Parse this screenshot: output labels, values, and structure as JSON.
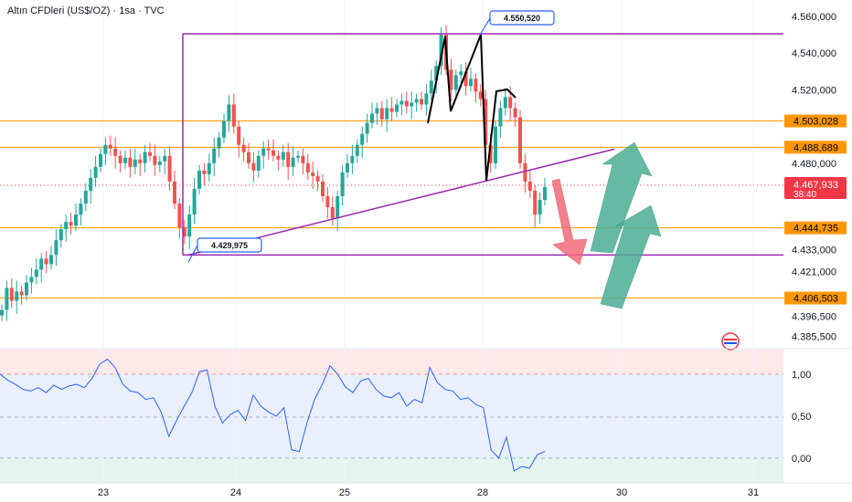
{
  "header": {
    "symbol": "Altın CFDleri (US$/OZ)",
    "interval": "1sa",
    "source": "TVC"
  },
  "colors": {
    "up": "#26a69a",
    "down": "#ef5350",
    "purple": "#9c27b0",
    "orange": "#ff9800",
    "blue_label": "#2962ff",
    "rsi_line": "#2962ff",
    "price_badge": "#f23645",
    "green_arrow": "#4caf95",
    "red_arrow": "#f06a7a"
  },
  "price_axis": {
    "ticks": [
      "4.560,000",
      "4.540,000",
      "4.520,000",
      "4.480,000",
      "4.433,000",
      "4.421,000",
      "4.396,500",
      "4.385,500"
    ],
    "levels": [
      {
        "label": "4.503,028",
        "value": 4503.028
      },
      {
        "label": "4.488,689",
        "value": 4488.689
      },
      {
        "label": "4.444,735",
        "value": 4444.735
      },
      {
        "label": "4.406,503",
        "value": 4406.503
      }
    ],
    "current_price": {
      "label": "4.467,933",
      "countdown": "38:40",
      "value": 4467.933
    }
  },
  "rsi_axis": {
    "ticks": [
      "1,00",
      "0,50",
      "0,00"
    ]
  },
  "time_axis": {
    "labels": [
      "23",
      "24",
      "25",
      "28",
      "30",
      "31"
    ]
  },
  "annotations": {
    "high_label": "4.550,520",
    "low_label": "4.429,975"
  },
  "chart_data": {
    "type": "candlestick",
    "title": "Altın CFDleri (US$/OZ) · 1sa · TVC",
    "price_range": [
      4385.5,
      4565
    ],
    "x_day_labels": [
      "23",
      "24",
      "25",
      "28",
      "30",
      "31"
    ],
    "box_high": 4550.52,
    "box_low": 4429.975,
    "trend_line": {
      "from": 4429.975,
      "to": 4488.689
    },
    "candles_close_series": [
      4400,
      4412,
      4405,
      4410,
      4408,
      4415,
      4418,
      4422,
      4428,
      4425,
      4430,
      4438,
      4444,
      4448,
      4446,
      4452,
      4458,
      4465,
      4472,
      4478,
      4485,
      4490,
      4488,
      4484,
      4480,
      4483,
      4478,
      4482,
      4480,
      4486,
      4484,
      4479,
      4481,
      4484,
      4470,
      4458,
      4445,
      4440,
      4452,
      4466,
      4476,
      4474,
      4480,
      4488,
      4494,
      4503,
      4512,
      4500,
      4490,
      4486,
      4480,
      4476,
      4484,
      4488,
      4487,
      4484,
      4482,
      4486,
      4478,
      4483,
      4484,
      4480,
      4475,
      4473,
      4470,
      4462,
      4456,
      4450,
      4462,
      4475,
      4480,
      4484,
      4490,
      4496,
      4502,
      4507,
      4510,
      4504,
      4510,
      4508,
      4512,
      4514,
      4511,
      4513,
      4515,
      4512,
      4518,
      4525,
      4533,
      4550,
      4531,
      4520,
      4528,
      4530,
      4522,
      4526,
      4519,
      4515,
      4490,
      4480,
      4500,
      4510,
      4516,
      4510,
      4505,
      4480,
      4470,
      4465,
      4452,
      4460,
      4467
    ],
    "rsi": {
      "range": [
        -0.2,
        1.3
      ],
      "ticks": [
        1.0,
        0.5,
        0.0
      ],
      "values": [
        1.0,
        0.93,
        0.88,
        0.82,
        0.8,
        0.84,
        0.78,
        0.87,
        0.82,
        0.86,
        0.88,
        0.84,
        0.95,
        1.12,
        1.18,
        1.08,
        0.88,
        0.8,
        0.78,
        0.7,
        0.72,
        0.55,
        0.26,
        0.45,
        0.62,
        0.78,
        1.03,
        1.05,
        0.62,
        0.42,
        0.52,
        0.57,
        0.45,
        0.75,
        0.62,
        0.55,
        0.5,
        0.6,
        0.1,
        0.08,
        0.42,
        0.7,
        0.88,
        1.1,
        1.0,
        0.85,
        0.78,
        0.92,
        0.95,
        0.82,
        0.74,
        0.72,
        0.78,
        0.62,
        0.7,
        0.66,
        1.08,
        0.9,
        0.82,
        0.8,
        0.7,
        0.72,
        0.64,
        0.6,
        0.1,
        0.0,
        0.25,
        -0.15,
        -0.1,
        -0.12,
        0.04,
        0.08
      ]
    }
  }
}
